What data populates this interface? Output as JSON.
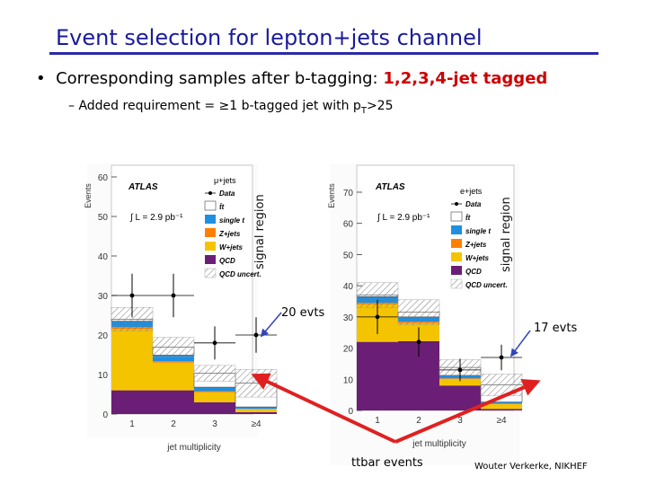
{
  "slide": {
    "title": "Event selection for lepton+jets channel",
    "bullet_text": "Corresponding samples after b-tagging: ",
    "bullet_highlight": "1,2,3,4-jet tagged",
    "sub_bullet_main": "–  Added requirement = ≥1 b-tagged jet with p",
    "sub_bullet_sub": "T",
    "sub_bullet_tail": ">25",
    "signal_region_label": "signal region",
    "left_annotation": "20 evts",
    "right_annotation": "17 evts",
    "ttbar_label": "ttbar events",
    "credit": "Wouter Verkerke, NIKHEF"
  },
  "colors": {
    "title": "#1a1a9c",
    "highlight": "#cc0000",
    "arrow_red": "#e02020",
    "arrow_blue": "#3344bb",
    "ttbar": "#ffffff",
    "single_t": "#1f8fe0",
    "zjets": "#ff7f00",
    "wjets": "#f5c400",
    "qcd": "#6b1e75"
  },
  "chart_data": [
    {
      "type": "bar",
      "stacked": true,
      "panel": "left",
      "channel": "μ+jets",
      "atlas_label": "ATLAS",
      "lumi_label": "∫ L = 2.9 pb⁻¹",
      "xlabel": "jet multiplicity",
      "ylabel": "Events",
      "categories": [
        "1",
        "2",
        "3",
        "≥4"
      ],
      "ylim": [
        0,
        63
      ],
      "yticks": [
        0,
        10,
        20,
        30,
        40,
        50,
        60
      ],
      "series": [
        {
          "name": "QCD",
          "legend": "QCD",
          "color_key": "qcd",
          "values": [
            6.0,
            6.0,
            3.0,
            0.5
          ]
        },
        {
          "name": "W+jets",
          "legend": "W+jets",
          "color_key": "wjets",
          "values": [
            15.5,
            7.0,
            2.5,
            0.7
          ]
        },
        {
          "name": "Z+jets",
          "legend": "Z+jets",
          "color_key": "zjets",
          "values": [
            0.5,
            0.4,
            0.3,
            0.1
          ]
        },
        {
          "name": "single t",
          "legend": "single t",
          "color_key": "single_t",
          "values": [
            1.5,
            1.5,
            1.0,
            0.5
          ]
        },
        {
          "name": "ttbar",
          "legend": "t̄t",
          "color_key": "ttbar",
          "values": [
            0.5,
            2.0,
            3.5,
            6.0
          ]
        }
      ],
      "data": [
        30.0,
        30.0,
        18.0,
        20.0
      ],
      "data_err": [
        5.5,
        5.5,
        4.2,
        4.5
      ],
      "uncert": [
        3.0,
        2.5,
        2.0,
        3.5
      ],
      "legend": {
        "data": "Data",
        "uncert": "QCD uncert."
      }
    },
    {
      "type": "bar",
      "stacked": true,
      "panel": "right",
      "channel": "e+jets",
      "atlas_label": "ATLAS",
      "lumi_label": "∫ L = 2.9 pb⁻¹",
      "xlabel": "jet multiplicity",
      "ylabel": "Events",
      "categories": [
        "1",
        "2",
        "3",
        "≥4"
      ],
      "ylim": [
        0,
        78
      ],
      "yticks": [
        0,
        10,
        20,
        30,
        40,
        50,
        60,
        70
      ],
      "series": [
        {
          "name": "QCD",
          "legend": "QCD",
          "color_key": "qcd",
          "values": [
            22.0,
            22.0,
            8.0,
            0.5
          ]
        },
        {
          "name": "W+jets",
          "legend": "W+jets",
          "color_key": "wjets",
          "values": [
            12.0,
            6.0,
            2.0,
            1.5
          ]
        },
        {
          "name": "Z+jets",
          "legend": "Z+jets",
          "color_key": "zjets",
          "values": [
            0.5,
            0.5,
            0.3,
            0.2
          ]
        },
        {
          "name": "single t",
          "legend": "single t",
          "color_key": "single_t",
          "values": [
            2.0,
            1.5,
            1.0,
            0.5
          ]
        },
        {
          "name": "ttbar",
          "legend": "t̄t",
          "color_key": "ttbar",
          "values": [
            0.5,
            1.5,
            2.5,
            5.5
          ]
        }
      ],
      "data": [
        30.0,
        22.0,
        13.0,
        17.0
      ],
      "data_err": [
        5.5,
        4.7,
        3.6,
        4.1
      ],
      "uncert": [
        4.0,
        4.0,
        2.5,
        3.5
      ],
      "legend": {
        "data": "Data",
        "uncert": "QCD uncert."
      }
    }
  ]
}
